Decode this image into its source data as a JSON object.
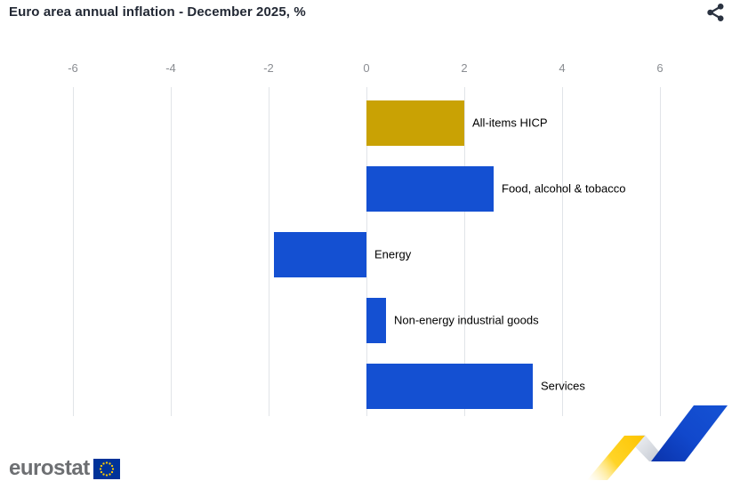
{
  "header": {
    "title": "Euro area annual inflation - December 2025, %"
  },
  "icons": {
    "share": "share-icon",
    "eu_flag": "eu-flag-icon",
    "ribbon": "eurostat-ribbon-graphic"
  },
  "chart_data": {
    "type": "bar",
    "orientation": "horizontal",
    "title": "Euro area annual inflation - December 2025, %",
    "categories": [
      "All-items HICP",
      "Food, alcohol & tobacco",
      "Energy",
      "Non-energy industrial goods",
      "Services"
    ],
    "values": [
      2.0,
      2.6,
      -1.9,
      0.4,
      3.4
    ],
    "bar_colors": [
      "#C9A204",
      "#1450D2",
      "#1450D2",
      "#1450D2",
      "#1450D2"
    ],
    "xticks": [
      -6,
      -4,
      -2,
      0,
      2,
      4,
      6
    ],
    "xlim": [
      -6,
      6
    ],
    "grid": true,
    "legend": "none",
    "label_position": "right-of-bar"
  },
  "colors": {
    "accent_gold": "#C9A204",
    "accent_blue": "#1450D2",
    "gridline": "#E1E4E8",
    "tick_label": "#8A8D92",
    "title_text": "#222834",
    "eu_flag_blue": "#003399",
    "eu_star_yellow": "#FFCC00"
  },
  "footer": {
    "logo_text": "eurostat"
  }
}
